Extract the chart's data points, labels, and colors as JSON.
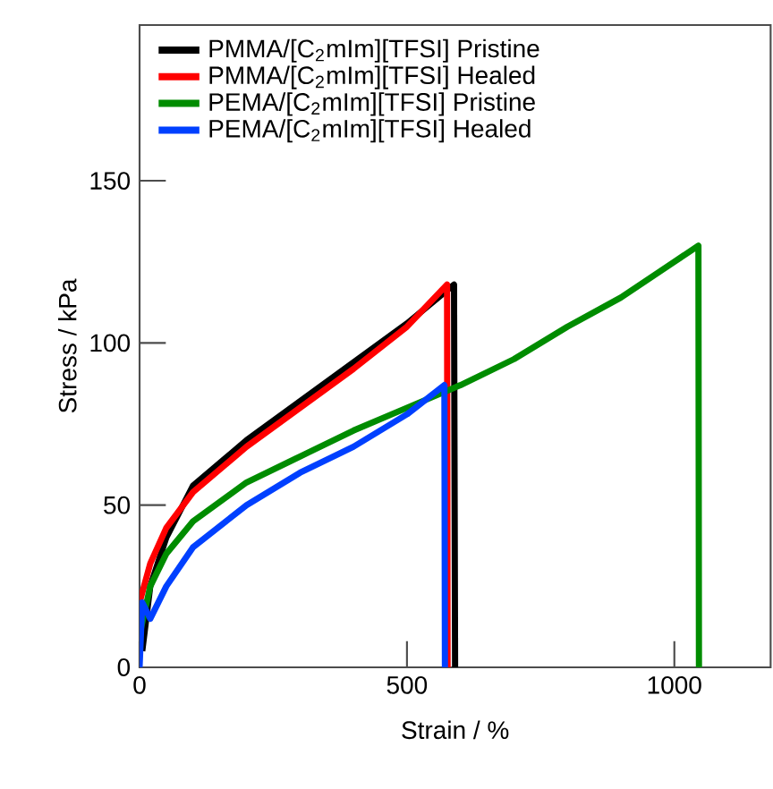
{
  "chart_data": {
    "type": "line",
    "xlabel": "Strain / %",
    "ylabel": "Stress / kPa",
    "xlim": [
      0,
      1180
    ],
    "ylim": [
      0,
      198
    ],
    "xticks": [
      0,
      500,
      1000
    ],
    "yticks": [
      0,
      50,
      100,
      150
    ],
    "grid": false,
    "legend": "top left",
    "marker": "none",
    "line_style": "solid",
    "series": [
      {
        "name": "PMMA/[C$_{2}$mIm][TFSI] Pristine",
        "color": "#000000",
        "x": [
          5,
          20,
          50,
          100,
          200,
          300,
          400,
          500,
          588,
          590
        ],
        "values": [
          5,
          25,
          40,
          56,
          70,
          82,
          94,
          106,
          118,
          0
        ]
      },
      {
        "name": "PMMA/[C$_{2}$mIm][TFSI] Healed",
        "color": "#ff0000",
        "x": [
          0,
          20,
          50,
          100,
          200,
          300,
          400,
          500,
          575,
          576
        ],
        "values": [
          20,
          32,
          43,
          54,
          68,
          80,
          92,
          105,
          118,
          0
        ]
      },
      {
        "name": "PEMA/[C$_{2}$mIm][TFSI] Pristine",
        "color": "#008c00",
        "x": [
          0,
          20,
          50,
          100,
          200,
          300,
          400,
          500,
          600,
          700,
          800,
          900,
          1000,
          1045,
          1046
        ],
        "values": [
          10,
          25,
          35,
          45,
          57,
          65,
          73,
          80,
          87,
          95,
          105,
          114,
          125,
          130,
          0
        ]
      },
      {
        "name": "PEMA/[C$_{2}$mIm][TFSI] Healed",
        "color": "#0040ff",
        "x": [
          0,
          5,
          20,
          50,
          100,
          200,
          300,
          400,
          500,
          570,
          571
        ],
        "values": [
          0,
          20,
          15,
          25,
          37,
          50,
          60,
          68,
          78,
          87,
          0
        ]
      }
    ]
  }
}
